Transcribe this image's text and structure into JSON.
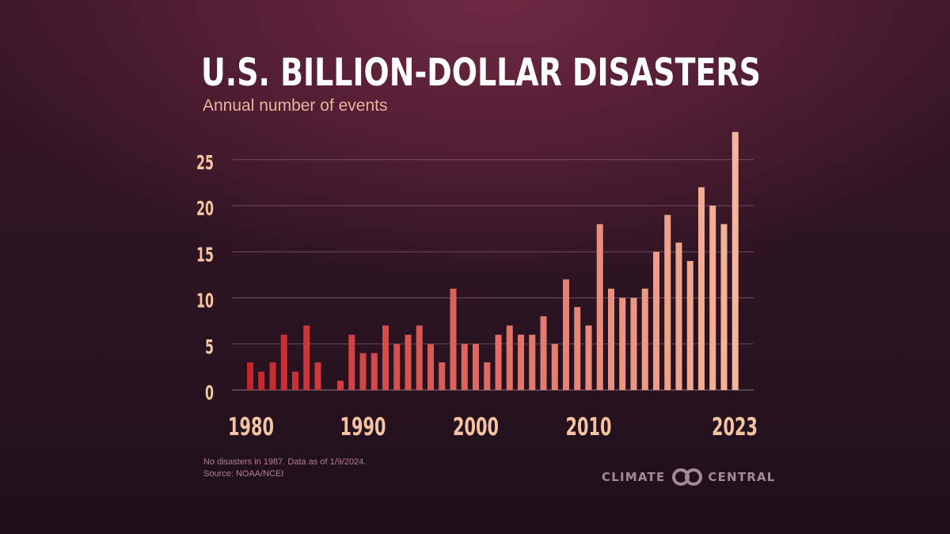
{
  "title": "U.S. BILLION-DOLLAR DISASTERS",
  "subtitle": "Annual number of events",
  "footnote": {
    "line1": "No disasters in 1987. Data as of 1/9/2024.",
    "line2": "Source: NOAA/NCEI"
  },
  "logo": {
    "word1": "CLIMATE",
    "word2": "CENTRAL",
    "icon": "interlocking-rings-icon"
  },
  "colors": {
    "background": "#3a1628",
    "bar_start": "#c7252d",
    "bar_end": "#f6b59a",
    "tick_text": "#f4c3a2",
    "grid": "#a07a8a"
  },
  "chart_data": {
    "type": "bar",
    "title": "U.S. BILLION-DOLLAR DISASTERS",
    "subtitle": "Annual number of events",
    "x": [
      1980,
      1981,
      1982,
      1983,
      1984,
      1985,
      1986,
      1987,
      1988,
      1989,
      1990,
      1991,
      1992,
      1993,
      1994,
      1995,
      1996,
      1997,
      1998,
      1999,
      2000,
      2001,
      2002,
      2003,
      2004,
      2005,
      2006,
      2007,
      2008,
      2009,
      2010,
      2011,
      2012,
      2013,
      2014,
      2015,
      2016,
      2017,
      2018,
      2019,
      2020,
      2021,
      2022,
      2023
    ],
    "values": [
      3,
      2,
      3,
      6,
      2,
      7,
      3,
      0,
      1,
      6,
      4,
      4,
      7,
      5,
      6,
      7,
      5,
      3,
      11,
      5,
      5,
      3,
      6,
      7,
      6,
      6,
      8,
      5,
      12,
      9,
      7,
      18,
      11,
      10,
      10,
      11,
      15,
      19,
      16,
      14,
      22,
      20,
      18,
      28
    ],
    "x_tick_labels": [
      "1980",
      "1990",
      "2000",
      "2010",
      "2023"
    ],
    "y_ticks": [
      0,
      5,
      10,
      15,
      20,
      25
    ],
    "ylim": [
      0,
      28
    ],
    "grid": true,
    "legend": "none",
    "color_gradient": [
      "#c7252d",
      "#f6b59a"
    ]
  }
}
